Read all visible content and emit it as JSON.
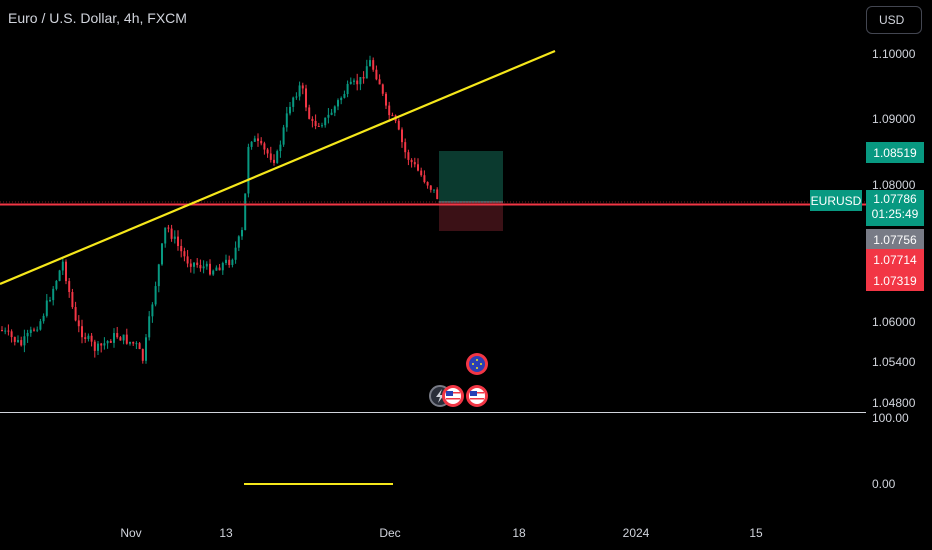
{
  "header": {
    "title": "Euro / U.S. Dollar, 4h, FXCM",
    "currency_button": "USD"
  },
  "price_axis": {
    "ticks": [
      "1.10000",
      "1.09000",
      "1.08000",
      "1.06000",
      "1.05400",
      "1.04800"
    ],
    "indicator_ticks": [
      "100.00",
      "0.00"
    ]
  },
  "price_tags": {
    "symbol": "EURUSD",
    "current_price": "1.07786",
    "countdown": "01:25:49",
    "target": "1.08519",
    "bid": "1.07756",
    "level_1": "1.07714",
    "level_2": "1.07319"
  },
  "time_axis": {
    "ticks": [
      "Nov",
      "13",
      "Dec",
      "18",
      "2024",
      "15"
    ]
  },
  "colors": {
    "background": "#000000",
    "trendline": "#f5e71b",
    "horizontal_line": "#f23645",
    "up_candle": "#089981",
    "down_candle": "#f23645",
    "profit_zone": "#0b3a2f",
    "loss_zone": "#3b1116",
    "flag_green": "#089981",
    "flag_gray": "#787b86",
    "flag_red": "#f23645"
  },
  "events": {
    "icons": [
      "eu-flag-icon",
      "lightning-icon",
      "us-flag-icon",
      "us-flag-icon"
    ]
  }
}
